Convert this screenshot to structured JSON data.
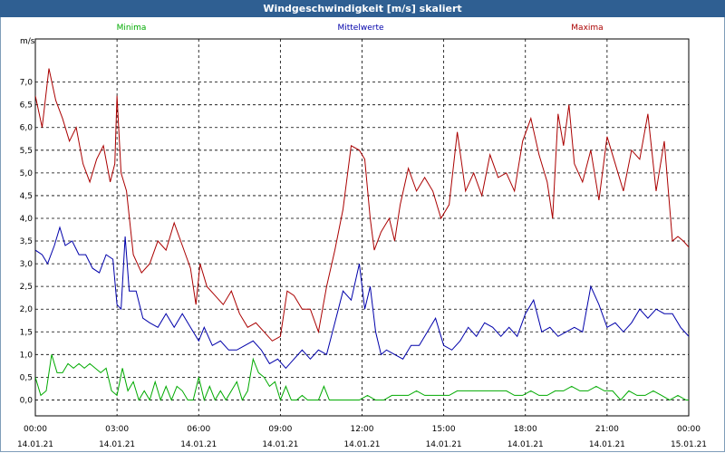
{
  "window": {
    "title": "Windgeschwindigkeit [m/s] skaliert"
  },
  "legend": {
    "minima": "Minima",
    "mittelwerte": "Mittelwerte",
    "maxima": "Maxima"
  },
  "y_unit": "m/s",
  "colors": {
    "minima": "#00aa00",
    "mittelwerte": "#0000aa",
    "maxima": "#aa0000",
    "title_bar": "#2f5f92"
  },
  "chart_data": {
    "type": "line",
    "title": "Windgeschwindigkeit [m/s] skaliert",
    "ylabel": "m/s",
    "ylim": [
      -0.35,
      7.95
    ],
    "yticks": [
      "0,0",
      "0,5",
      "1,0",
      "1,5",
      "2,0",
      "2,5",
      "3,0",
      "3,5",
      "4,0",
      "4,5",
      "5,0",
      "5,5",
      "6,0",
      "6,5",
      "7,0"
    ],
    "xlim_hours": [
      0,
      24
    ],
    "xticks": [
      {
        "time": "00:00",
        "date": "14.01.21"
      },
      {
        "time": "03:00",
        "date": "14.01.21"
      },
      {
        "time": "06:00",
        "date": "14.01.21"
      },
      {
        "time": "09:00",
        "date": "14.01.21"
      },
      {
        "time": "12:00",
        "date": "14.01.21"
      },
      {
        "time": "15:00",
        "date": "14.01.21"
      },
      {
        "time": "18:00",
        "date": "14.01.21"
      },
      {
        "time": "21:00",
        "date": "14.01.21"
      },
      {
        "time": "00:00",
        "date": "15.01.21"
      }
    ],
    "grid": true,
    "series": [
      {
        "name": "Maxima",
        "color": "#aa0000",
        "points": [
          [
            0,
            6.7
          ],
          [
            0.25,
            6.0
          ],
          [
            0.5,
            7.3
          ],
          [
            0.75,
            6.6
          ],
          [
            1,
            6.2
          ],
          [
            1.25,
            5.7
          ],
          [
            1.5,
            6.0
          ],
          [
            1.75,
            5.2
          ],
          [
            2,
            4.8
          ],
          [
            2.25,
            5.3
          ],
          [
            2.5,
            5.6
          ],
          [
            2.75,
            4.8
          ],
          [
            2.92,
            5.2
          ],
          [
            3,
            6.7
          ],
          [
            3.15,
            5.0
          ],
          [
            3.35,
            4.6
          ],
          [
            3.6,
            3.2
          ],
          [
            3.9,
            2.8
          ],
          [
            4.2,
            3.0
          ],
          [
            4.5,
            3.5
          ],
          [
            4.8,
            3.3
          ],
          [
            5.1,
            3.9
          ],
          [
            5.4,
            3.4
          ],
          [
            5.7,
            2.9
          ],
          [
            5.9,
            2.1
          ],
          [
            6.05,
            3.0
          ],
          [
            6.3,
            2.5
          ],
          [
            6.6,
            2.3
          ],
          [
            6.9,
            2.1
          ],
          [
            7.2,
            2.4
          ],
          [
            7.5,
            1.9
          ],
          [
            7.8,
            1.6
          ],
          [
            8.1,
            1.7
          ],
          [
            8.4,
            1.5
          ],
          [
            8.7,
            1.3
          ],
          [
            9,
            1.4
          ],
          [
            9.25,
            2.4
          ],
          [
            9.5,
            2.3
          ],
          [
            9.8,
            2.0
          ],
          [
            10.1,
            2.0
          ],
          [
            10.4,
            1.5
          ],
          [
            10.7,
            2.5
          ],
          [
            11,
            3.3
          ],
          [
            11.3,
            4.2
          ],
          [
            11.6,
            5.6
          ],
          [
            11.9,
            5.5
          ],
          [
            12.1,
            5.3
          ],
          [
            12.3,
            4.0
          ],
          [
            12.45,
            3.3
          ],
          [
            12.7,
            3.7
          ],
          [
            13,
            4.0
          ],
          [
            13.2,
            3.5
          ],
          [
            13.4,
            4.3
          ],
          [
            13.7,
            5.1
          ],
          [
            14,
            4.6
          ],
          [
            14.3,
            4.9
          ],
          [
            14.6,
            4.6
          ],
          [
            14.9,
            4.0
          ],
          [
            15.2,
            4.3
          ],
          [
            15.5,
            5.9
          ],
          [
            15.8,
            4.6
          ],
          [
            16.1,
            5.0
          ],
          [
            16.4,
            4.5
          ],
          [
            16.7,
            5.4
          ],
          [
            17,
            4.9
          ],
          [
            17.3,
            5.0
          ],
          [
            17.6,
            4.6
          ],
          [
            17.9,
            5.7
          ],
          [
            18.2,
            6.2
          ],
          [
            18.5,
            5.4
          ],
          [
            18.8,
            4.8
          ],
          [
            19,
            4.0
          ],
          [
            19.2,
            6.3
          ],
          [
            19.4,
            5.6
          ],
          [
            19.6,
            6.5
          ],
          [
            19.8,
            5.2
          ],
          [
            20.1,
            4.8
          ],
          [
            20.4,
            5.5
          ],
          [
            20.7,
            4.4
          ],
          [
            21,
            5.8
          ],
          [
            21.3,
            5.2
          ],
          [
            21.6,
            4.6
          ],
          [
            21.9,
            5.5
          ],
          [
            22.2,
            5.3
          ],
          [
            22.5,
            6.3
          ],
          [
            22.8,
            4.6
          ],
          [
            23.1,
            5.7
          ],
          [
            23.4,
            3.5
          ],
          [
            23.6,
            3.6
          ],
          [
            23.8,
            3.5
          ],
          [
            24.1,
            3.3
          ],
          [
            24.3,
            3.0
          ],
          [
            24.6,
            4.3
          ],
          [
            24.9,
            4.1
          ]
        ]
      },
      {
        "name": "Mittelwerte",
        "color": "#0000aa",
        "points": [
          [
            0,
            3.3
          ],
          [
            0.25,
            3.2
          ],
          [
            0.45,
            3.0
          ],
          [
            0.7,
            3.4
          ],
          [
            0.9,
            3.8
          ],
          [
            1.1,
            3.4
          ],
          [
            1.35,
            3.5
          ],
          [
            1.6,
            3.2
          ],
          [
            1.85,
            3.2
          ],
          [
            2.1,
            2.9
          ],
          [
            2.35,
            2.8
          ],
          [
            2.6,
            3.2
          ],
          [
            2.85,
            3.1
          ],
          [
            3,
            2.1
          ],
          [
            3.15,
            2.0
          ],
          [
            3.3,
            3.6
          ],
          [
            3.45,
            2.4
          ],
          [
            3.7,
            2.4
          ],
          [
            3.95,
            1.8
          ],
          [
            4.2,
            1.7
          ],
          [
            4.5,
            1.6
          ],
          [
            4.8,
            1.9
          ],
          [
            5.1,
            1.6
          ],
          [
            5.4,
            1.9
          ],
          [
            5.7,
            1.6
          ],
          [
            6,
            1.3
          ],
          [
            6.2,
            1.6
          ],
          [
            6.5,
            1.2
          ],
          [
            6.8,
            1.3
          ],
          [
            7.1,
            1.1
          ],
          [
            7.4,
            1.1
          ],
          [
            7.7,
            1.2
          ],
          [
            8,
            1.3
          ],
          [
            8.3,
            1.1
          ],
          [
            8.6,
            0.8
          ],
          [
            8.9,
            0.9
          ],
          [
            9.2,
            0.7
          ],
          [
            9.5,
            0.9
          ],
          [
            9.8,
            1.1
          ],
          [
            10.1,
            0.9
          ],
          [
            10.4,
            1.1
          ],
          [
            10.7,
            1.0
          ],
          [
            11,
            1.7
          ],
          [
            11.3,
            2.4
          ],
          [
            11.6,
            2.2
          ],
          [
            11.9,
            3.0
          ],
          [
            12.1,
            2.0
          ],
          [
            12.3,
            2.5
          ],
          [
            12.5,
            1.5
          ],
          [
            12.7,
            1.0
          ],
          [
            12.9,
            1.1
          ],
          [
            13.2,
            1.0
          ],
          [
            13.5,
            0.9
          ],
          [
            13.8,
            1.2
          ],
          [
            14.1,
            1.2
          ],
          [
            14.4,
            1.5
          ],
          [
            14.7,
            1.8
          ],
          [
            15,
            1.2
          ],
          [
            15.3,
            1.1
          ],
          [
            15.6,
            1.3
          ],
          [
            15.9,
            1.6
          ],
          [
            16.2,
            1.4
          ],
          [
            16.5,
            1.7
          ],
          [
            16.8,
            1.6
          ],
          [
            17.1,
            1.4
          ],
          [
            17.4,
            1.6
          ],
          [
            17.7,
            1.4
          ],
          [
            18,
            1.9
          ],
          [
            18.3,
            2.2
          ],
          [
            18.6,
            1.5
          ],
          [
            18.9,
            1.6
          ],
          [
            19.2,
            1.4
          ],
          [
            19.5,
            1.5
          ],
          [
            19.8,
            1.6
          ],
          [
            20.1,
            1.5
          ],
          [
            20.4,
            2.5
          ],
          [
            20.7,
            2.1
          ],
          [
            21,
            1.6
          ],
          [
            21.3,
            1.7
          ],
          [
            21.6,
            1.5
          ],
          [
            21.9,
            1.7
          ],
          [
            22.2,
            2.0
          ],
          [
            22.5,
            1.8
          ],
          [
            22.8,
            2.0
          ],
          [
            23.1,
            1.9
          ],
          [
            23.4,
            1.9
          ],
          [
            23.7,
            1.6
          ],
          [
            24,
            1.4
          ],
          [
            24.3,
            1.3
          ],
          [
            24.6,
            1.9
          ],
          [
            24.9,
            2.6
          ]
        ]
      },
      {
        "name": "Minima",
        "color": "#00aa00",
        "points": [
          [
            0,
            0.5
          ],
          [
            0.2,
            0.1
          ],
          [
            0.4,
            0.2
          ],
          [
            0.6,
            1.0
          ],
          [
            0.8,
            0.6
          ],
          [
            1.0,
            0.6
          ],
          [
            1.2,
            0.8
          ],
          [
            1.4,
            0.7
          ],
          [
            1.6,
            0.8
          ],
          [
            1.8,
            0.7
          ],
          [
            2.0,
            0.8
          ],
          [
            2.2,
            0.7
          ],
          [
            2.4,
            0.6
          ],
          [
            2.6,
            0.7
          ],
          [
            2.8,
            0.2
          ],
          [
            3.0,
            0.1
          ],
          [
            3.2,
            0.7
          ],
          [
            3.4,
            0.2
          ],
          [
            3.6,
            0.4
          ],
          [
            3.8,
            0.0
          ],
          [
            4.0,
            0.2
          ],
          [
            4.2,
            0.0
          ],
          [
            4.4,
            0.4
          ],
          [
            4.6,
            0.0
          ],
          [
            4.8,
            0.3
          ],
          [
            5.0,
            0.0
          ],
          [
            5.2,
            0.3
          ],
          [
            5.4,
            0.2
          ],
          [
            5.6,
            0.0
          ],
          [
            5.8,
            0.0
          ],
          [
            6.0,
            0.5
          ],
          [
            6.2,
            0.0
          ],
          [
            6.4,
            0.3
          ],
          [
            6.6,
            0.0
          ],
          [
            6.8,
            0.2
          ],
          [
            7.0,
            0.0
          ],
          [
            7.2,
            0.2
          ],
          [
            7.4,
            0.4
          ],
          [
            7.6,
            0.0
          ],
          [
            7.8,
            0.2
          ],
          [
            8.0,
            0.9
          ],
          [
            8.2,
            0.6
          ],
          [
            8.4,
            0.5
          ],
          [
            8.6,
            0.3
          ],
          [
            8.8,
            0.4
          ],
          [
            9.0,
            0.0
          ],
          [
            9.2,
            0.3
          ],
          [
            9.4,
            0.0
          ],
          [
            9.6,
            0.0
          ],
          [
            9.8,
            0.1
          ],
          [
            10.0,
            0.0
          ],
          [
            10.2,
            0.0
          ],
          [
            10.4,
            0.0
          ],
          [
            10.6,
            0.3
          ],
          [
            10.8,
            0.0
          ],
          [
            11.0,
            0.0
          ],
          [
            11.3,
            0.0
          ],
          [
            11.6,
            0.0
          ],
          [
            11.9,
            0.0
          ],
          [
            12.2,
            0.1
          ],
          [
            12.5,
            0.0
          ],
          [
            12.8,
            0.0
          ],
          [
            13.1,
            0.1
          ],
          [
            13.4,
            0.1
          ],
          [
            13.7,
            0.1
          ],
          [
            14.0,
            0.2
          ],
          [
            14.3,
            0.1
          ],
          [
            14.6,
            0.1
          ],
          [
            14.9,
            0.1
          ],
          [
            15.2,
            0.1
          ],
          [
            15.5,
            0.2
          ],
          [
            15.8,
            0.2
          ],
          [
            16.1,
            0.2
          ],
          [
            16.4,
            0.2
          ],
          [
            16.7,
            0.2
          ],
          [
            17.0,
            0.2
          ],
          [
            17.3,
            0.2
          ],
          [
            17.6,
            0.1
          ],
          [
            17.9,
            0.1
          ],
          [
            18.2,
            0.2
          ],
          [
            18.5,
            0.1
          ],
          [
            18.8,
            0.1
          ],
          [
            19.1,
            0.2
          ],
          [
            19.4,
            0.2
          ],
          [
            19.7,
            0.3
          ],
          [
            20.0,
            0.2
          ],
          [
            20.3,
            0.2
          ],
          [
            20.6,
            0.3
          ],
          [
            20.9,
            0.2
          ],
          [
            21.2,
            0.2
          ],
          [
            21.5,
            0.0
          ],
          [
            21.8,
            0.2
          ],
          [
            22.1,
            0.1
          ],
          [
            22.4,
            0.1
          ],
          [
            22.7,
            0.2
          ],
          [
            23.0,
            0.1
          ],
          [
            23.3,
            0.0
          ],
          [
            23.6,
            0.1
          ],
          [
            23.9,
            0.0
          ],
          [
            24.2,
            0.0
          ],
          [
            24.5,
            0.0
          ],
          [
            24.8,
            0.5
          ],
          [
            24.9,
            0.4
          ]
        ]
      }
    ]
  }
}
